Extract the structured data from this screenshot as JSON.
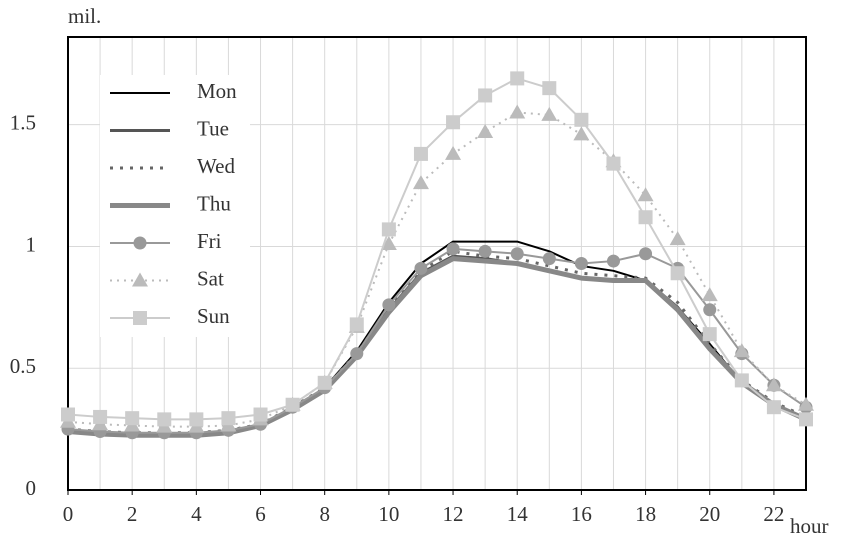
{
  "chart_data": {
    "type": "line",
    "y_label": "mil.",
    "x_label": "hour",
    "x": [
      0,
      1,
      2,
      3,
      4,
      5,
      6,
      7,
      8,
      9,
      10,
      11,
      12,
      13,
      14,
      15,
      16,
      17,
      18,
      19,
      20,
      21,
      22,
      23
    ],
    "xlim": [
      0,
      23
    ],
    "xticks": [
      0,
      2,
      4,
      6,
      8,
      10,
      12,
      14,
      16,
      18,
      20,
      22
    ],
    "ylim": [
      0,
      1.86
    ],
    "yticks": [
      0,
      0.5,
      1,
      1.5
    ],
    "grid": true,
    "legend": "upper left",
    "series": [
      {
        "name": "Mon",
        "color": "#000000",
        "width": 2,
        "dash": "solid",
        "marker": "none",
        "values": [
          0.24,
          0.235,
          0.23,
          0.23,
          0.23,
          0.24,
          0.27,
          0.33,
          0.42,
          0.57,
          0.77,
          0.93,
          1.02,
          1.02,
          1.02,
          0.98,
          0.92,
          0.9,
          0.86,
          0.75,
          0.6,
          0.44,
          0.35,
          0.29
        ]
      },
      {
        "name": "Tue",
        "color": "#555555",
        "width": 3,
        "dash": "solid",
        "marker": "none",
        "values": [
          0.24,
          0.23,
          0.225,
          0.225,
          0.225,
          0.235,
          0.265,
          0.33,
          0.41,
          0.55,
          0.74,
          0.89,
          0.96,
          0.95,
          0.93,
          0.9,
          0.87,
          0.86,
          0.86,
          0.75,
          0.58,
          0.44,
          0.35,
          0.29
        ]
      },
      {
        "name": "Wed",
        "color": "#666666",
        "width": 3,
        "dash": "dot",
        "marker": "none",
        "values": [
          0.25,
          0.24,
          0.235,
          0.235,
          0.235,
          0.245,
          0.27,
          0.34,
          0.42,
          0.56,
          0.75,
          0.9,
          0.98,
          0.96,
          0.95,
          0.92,
          0.89,
          0.88,
          0.87,
          0.77,
          0.6,
          0.45,
          0.36,
          0.3
        ]
      },
      {
        "name": "Thu",
        "color": "#888888",
        "width": 5,
        "dash": "solid",
        "marker": "none",
        "values": [
          0.24,
          0.23,
          0.225,
          0.225,
          0.225,
          0.235,
          0.265,
          0.33,
          0.41,
          0.55,
          0.73,
          0.88,
          0.95,
          0.94,
          0.93,
          0.9,
          0.87,
          0.86,
          0.86,
          0.74,
          0.58,
          0.44,
          0.35,
          0.29
        ]
      },
      {
        "name": "Fri",
        "color": "#999999",
        "width": 2,
        "dash": "solid",
        "marker": "circle",
        "values": [
          0.25,
          0.24,
          0.235,
          0.235,
          0.235,
          0.245,
          0.27,
          0.34,
          0.42,
          0.56,
          0.76,
          0.91,
          0.99,
          0.98,
          0.97,
          0.95,
          0.93,
          0.94,
          0.97,
          0.91,
          0.74,
          0.56,
          0.43,
          0.34
        ]
      },
      {
        "name": "Sat",
        "color": "#bbbbbb",
        "width": 2,
        "dash": "dot",
        "marker": "triangle",
        "values": [
          0.28,
          0.27,
          0.265,
          0.26,
          0.26,
          0.265,
          0.29,
          0.35,
          0.44,
          0.67,
          1.01,
          1.26,
          1.38,
          1.47,
          1.55,
          1.54,
          1.46,
          1.35,
          1.21,
          1.03,
          0.8,
          0.57,
          0.43,
          0.35
        ]
      },
      {
        "name": "Sun",
        "color": "#cccccc",
        "width": 2,
        "dash": "solid",
        "marker": "square",
        "values": [
          0.31,
          0.3,
          0.295,
          0.29,
          0.29,
          0.295,
          0.31,
          0.35,
          0.44,
          0.68,
          1.07,
          1.38,
          1.51,
          1.62,
          1.69,
          1.65,
          1.52,
          1.34,
          1.12,
          0.89,
          0.64,
          0.45,
          0.34,
          0.29
        ]
      }
    ]
  }
}
